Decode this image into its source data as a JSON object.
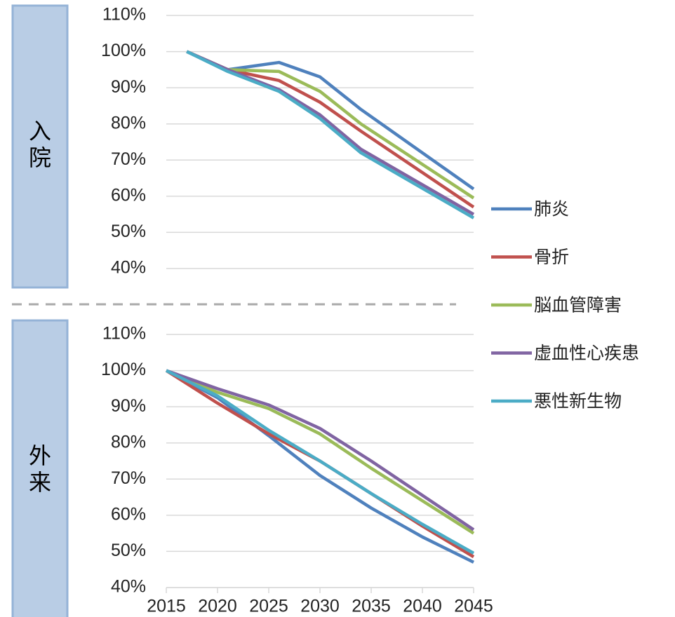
{
  "chart_data": [
    {
      "type": "line",
      "label": "入院",
      "xlim": [
        2015,
        2045
      ],
      "x": [
        2017,
        2021,
        2026,
        2030,
        2034,
        2045
      ],
      "ylim": [
        40,
        110
      ],
      "yticks": [
        {
          "value": 40,
          "label": "40%"
        },
        {
          "value": 50,
          "label": "50%"
        },
        {
          "value": 60,
          "label": "60%"
        },
        {
          "value": 70,
          "label": "70%"
        },
        {
          "value": 80,
          "label": "80%"
        },
        {
          "value": 90,
          "label": "90%"
        },
        {
          "value": 100,
          "label": "100%"
        },
        {
          "value": 110,
          "label": "110%"
        }
      ],
      "grid": true,
      "legend": "right",
      "series": [
        {
          "name": "肺炎",
          "color": "#4f81bd",
          "values": [
            100,
            95,
            97,
            93,
            84,
            62
          ]
        },
        {
          "name": "骨折",
          "color": "#c0504d",
          "values": [
            100,
            95,
            92,
            86,
            78,
            57
          ]
        },
        {
          "name": "脳血管障害",
          "color": "#9bbb59",
          "values": [
            100,
            95,
            94.5,
            89,
            80,
            59.5
          ]
        },
        {
          "name": "虚血性心疾患",
          "color": "#8064a2",
          "values": [
            100,
            95,
            89.5,
            82.5,
            73,
            55
          ]
        },
        {
          "name": "悪性新生物",
          "color": "#4bacc6",
          "values": [
            100,
            94.5,
            89,
            81.5,
            72,
            54
          ]
        }
      ]
    },
    {
      "type": "line",
      "label": "外来",
      "xlim": [
        2015,
        2045
      ],
      "x": [
        2015,
        2020,
        2025,
        2030,
        2035,
        2040,
        2045
      ],
      "xticks": [
        2015,
        2020,
        2025,
        2030,
        2035,
        2040,
        2045
      ],
      "ylim": [
        40,
        110
      ],
      "yticks": [
        {
          "value": 40,
          "label": "40%"
        },
        {
          "value": 50,
          "label": "50%"
        },
        {
          "value": 60,
          "label": "60%"
        },
        {
          "value": 70,
          "label": "70%"
        },
        {
          "value": 80,
          "label": "80%"
        },
        {
          "value": 90,
          "label": "90%"
        },
        {
          "value": 100,
          "label": "100%"
        },
        {
          "value": 110,
          "label": "110%"
        }
      ],
      "grid": true,
      "series": [
        {
          "color": "#4f81bd",
          "values": [
            100,
            92.5,
            82,
            71,
            62,
            54,
            47
          ]
        },
        {
          "color": "#c0504d",
          "values": [
            100,
            91,
            82.5,
            75,
            66,
            57,
            48.5
          ]
        },
        {
          "color": "#9bbb59",
          "values": [
            100,
            94,
            89.5,
            82.5,
            73,
            64,
            55
          ]
        },
        {
          "color": "#8064a2",
          "values": [
            100,
            95,
            90.5,
            84,
            75,
            65.5,
            56
          ]
        },
        {
          "color": "#4bacc6",
          "values": [
            100,
            93,
            83.5,
            75,
            66,
            57.5,
            49.5
          ]
        }
      ]
    }
  ]
}
